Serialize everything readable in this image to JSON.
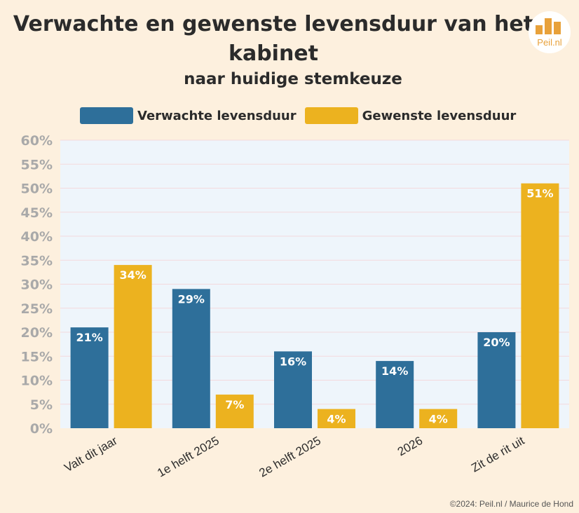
{
  "header": {
    "title": "Verwachte en gewenste levensduur van het kabinet",
    "subtitle": "naar huidige stemkeuze"
  },
  "logo": {
    "text": "Peil.nl"
  },
  "footer": {
    "credit": "©2024: Peil.nl / Maurice de Hond"
  },
  "colors": {
    "verwacht": "#2e6f9a",
    "gewenst": "#ecb21f",
    "plot_bg": "#eef5fb",
    "page_bg": "#fdf0de"
  },
  "chart_data": {
    "type": "bar",
    "title": "Verwachte en gewenste levensduur van het kabinet",
    "subtitle": "naar huidige stemkeuze",
    "categories": [
      "Valt dit jaar",
      "1e helft 2025",
      "2e helft 2025",
      "2026",
      "Zit de rit uit"
    ],
    "series": [
      {
        "name": "Verwachte levensduur",
        "values": [
          21,
          29,
          16,
          14,
          20
        ],
        "labels": [
          "21%",
          "29%",
          "16%",
          "14%",
          "20%"
        ]
      },
      {
        "name": "Gewenste levensduur",
        "values": [
          34,
          7,
          4,
          4,
          51
        ],
        "labels": [
          "34%",
          "7%",
          "4%",
          "4%",
          "51%"
        ]
      }
    ],
    "yticks": [
      "0%",
      "5%",
      "10%",
      "15%",
      "20%",
      "25%",
      "30%",
      "35%",
      "40%",
      "45%",
      "50%",
      "55%",
      "60%"
    ],
    "ylim": [
      0,
      60
    ],
    "legend": "top-center",
    "grid": true
  }
}
